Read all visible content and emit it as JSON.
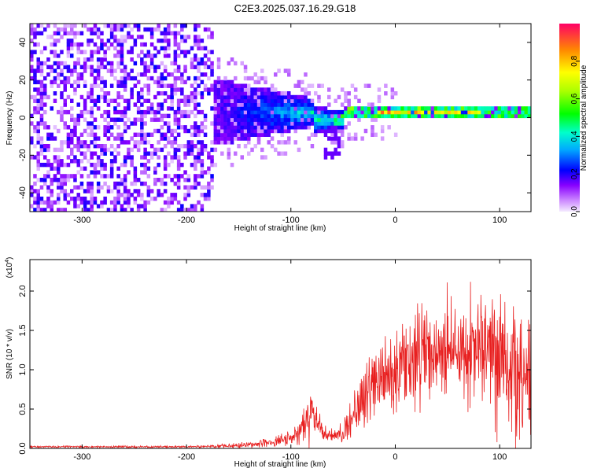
{
  "title": "C2E3.2025.037.16.29.G18",
  "chart_data": [
    {
      "type": "heatmap",
      "xlabel": "Height of straight line (km)",
      "ylabel": "Frequency (Hz)",
      "xlim": [
        -350,
        130
      ],
      "ylim": [
        -50,
        50
      ],
      "x_ticks": [
        -300,
        -200,
        -100,
        0,
        100
      ],
      "x_tick_labels": [
        "-300",
        "-200",
        "-100",
        "0",
        "100"
      ],
      "y_ticks": [
        -40,
        -20,
        0,
        20,
        40
      ],
      "y_tick_labels": [
        "-40",
        "-20",
        "0",
        "20",
        "40"
      ],
      "colorbar": {
        "label": "Normalized spectral amplitude",
        "range": [
          0,
          1
        ],
        "ticks": [
          0.0,
          0.2,
          0.4,
          0.6,
          0.8
        ],
        "tick_labels": [
          "0.0",
          "0.2",
          "0.4",
          "0.6",
          "0.8"
        ]
      },
      "features": {
        "noise_region_x": [
          -350,
          -175
        ],
        "signal_onset_x": -175,
        "carrier_frequency_hz": 2,
        "peak_band_x": [
          -20,
          80
        ],
        "peak_amplitude": 0.95
      }
    },
    {
      "type": "line",
      "xlabel": "Height of straight line (km)",
      "ylabel": "SNR (10 * v/v)",
      "y_scale_label": "(x10",
      "y_scale_exponent": "4",
      "y_scale_close": ")",
      "xlim": [
        -350,
        130
      ],
      "ylim": [
        0,
        24000
      ],
      "x_ticks": [
        -300,
        -200,
        -100,
        0,
        100
      ],
      "x_tick_labels": [
        "-300",
        "-200",
        "-100",
        "0",
        "100"
      ],
      "y_ticks": [
        0,
        5000,
        10000,
        15000,
        20000
      ],
      "y_tick_labels": [
        "0.0",
        "0.5",
        "1.0",
        "1.5",
        "2.0"
      ],
      "color": "#e82020",
      "envelope": {
        "x": [
          -350,
          -200,
          -160,
          -130,
          -100,
          -90,
          -82,
          -76,
          -68,
          -60,
          -50,
          -40,
          -30,
          -20,
          -10,
          0,
          20,
          40,
          60,
          80,
          100,
          115,
          130
        ],
        "mean": [
          200,
          200,
          300,
          600,
          1200,
          2500,
          4500,
          3500,
          2000,
          1500,
          2000,
          3500,
          6000,
          7500,
          8500,
          10000,
          11500,
          12500,
          12500,
          12500,
          12000,
          10000,
          8000
        ],
        "amp": [
          120,
          140,
          250,
          500,
          1000,
          2000,
          3800,
          2500,
          1200,
          1000,
          1500,
          3000,
          4500,
          5500,
          5500,
          5500,
          6000,
          6500,
          7000,
          8000,
          9500,
          10500,
          9000
        ]
      }
    }
  ]
}
